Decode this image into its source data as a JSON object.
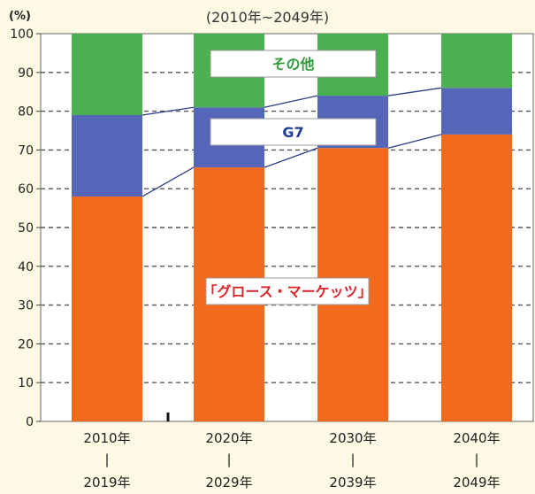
{
  "chart_data": {
    "type": "bar",
    "stacked": true,
    "title": "",
    "subtitle": "(2010年~2049年)",
    "y_unit": "(%)",
    "ylim": [
      0,
      100
    ],
    "y_ticks": [
      0,
      10,
      20,
      30,
      40,
      50,
      60,
      70,
      80,
      90,
      100
    ],
    "grid": true,
    "categories": [
      {
        "top": "2010年",
        "sep": "|",
        "bottom": "2019年"
      },
      {
        "top": "2020年",
        "sep": "|",
        "bottom": "2029年"
      },
      {
        "top": "2030年",
        "sep": "|",
        "bottom": "2039年"
      },
      {
        "top": "2040年",
        "sep": "|",
        "bottom": "2049年"
      }
    ],
    "series": [
      {
        "name": "「グロース・マーケッツ」",
        "color": "#f26a1b",
        "label_color": "#d9262b",
        "values": [
          58,
          65.5,
          70.5,
          74
        ]
      },
      {
        "name": "G7",
        "color": "#5566b8",
        "label_color": "#1f3d99",
        "values": [
          21,
          15.5,
          13.5,
          12
        ]
      },
      {
        "name": "その他",
        "color": "#4caf50",
        "label_color": "#2e9a3a",
        "values": [
          21,
          19,
          16,
          14
        ]
      }
    ]
  }
}
